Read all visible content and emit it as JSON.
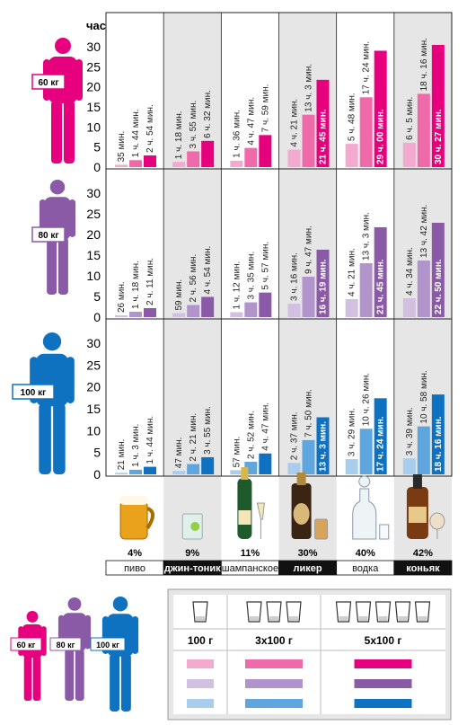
{
  "colors": {
    "p60": [
      "#f4a9cf",
      "#ee6aa9",
      "#e6007e"
    ],
    "p80": [
      "#d2c0e2",
      "#b294cc",
      "#8b5aa6"
    ],
    "p100": [
      "#a9cdec",
      "#5ea6dd",
      "#0f72c0"
    ],
    "shade": "#e6e6e6",
    "grid": "#222222"
  },
  "chart_data": {
    "type": "bar",
    "ylabel": "час",
    "ylim": [
      0,
      30
    ],
    "yticks": [
      0,
      5,
      10,
      15,
      20,
      25,
      30
    ],
    "categories": [
      {
        "name": "пиво",
        "percent": "4%",
        "label_style": "plain"
      },
      {
        "name": "джин-тоник",
        "percent": "9%",
        "label_style": "inverted"
      },
      {
        "name": "шампанское",
        "percent": "11%",
        "label_style": "plain"
      },
      {
        "name": "ликер",
        "percent": "30%",
        "label_style": "inverted"
      },
      {
        "name": "водка",
        "percent": "40%",
        "label_style": "plain"
      },
      {
        "name": "коньяк",
        "percent": "42%",
        "label_style": "inverted"
      }
    ],
    "series": [
      "100 г",
      "3x100 г",
      "5x100 г"
    ],
    "panels": [
      {
        "weight": "60 кг",
        "palette": "p60",
        "values": [
          [
            0.58,
            1.73,
            2.9
          ],
          [
            1.3,
            3.92,
            6.53
          ],
          [
            1.6,
            4.78,
            7.98
          ],
          [
            4.35,
            13.05,
            21.75
          ],
          [
            5.8,
            17.4,
            29.0
          ],
          [
            6.08,
            18.27,
            30.45
          ]
        ],
        "labels": [
          [
            "35 мин.",
            "1 ч. 44 мин.",
            "2 ч. 54 мин."
          ],
          [
            "1 ч. 18 мин.",
            "3 ч. 55 мин.",
            "6 ч. 32 мин."
          ],
          [
            "1 ч. 36 мин.",
            "4 ч. 47 мин.",
            "7 ч. 59 мин."
          ],
          [
            "4 ч. 21 мин.",
            "13 ч. 3 мин.",
            "21 ч. 45 мин."
          ],
          [
            "5 ч. 48 мин.",
            "17 ч. 24 мин.",
            "29 ч. 00 мин."
          ],
          [
            "6 ч. 5 мин.",
            "18 ч. 16 мин.",
            "30 ч. 27 мин."
          ]
        ]
      },
      {
        "weight": "80 кг",
        "palette": "p80",
        "values": [
          [
            0.43,
            1.3,
            2.18
          ],
          [
            0.98,
            2.93,
            4.9
          ],
          [
            1.2,
            3.58,
            5.95
          ],
          [
            3.27,
            9.78,
            16.32
          ],
          [
            4.35,
            13.05,
            21.75
          ],
          [
            4.57,
            13.7,
            22.83
          ]
        ],
        "labels": [
          [
            "26 мин.",
            "1 ч. 18 мин.",
            "2 ч. 11 мин."
          ],
          [
            "59 мин.",
            "2 ч. 56 мин.",
            "4 ч. 54 мин."
          ],
          [
            "1 ч. 12 мин.",
            "3 ч. 35 мин.",
            "5 ч. 57 мин."
          ],
          [
            "3 ч. 16 мин.",
            "9 ч. 47 мин.",
            "16 ч. 19 мин."
          ],
          [
            "4 ч. 21 мин.",
            "13 ч. 3 мин.",
            "21 ч. 45 мин."
          ],
          [
            "4 ч. 34 мин.",
            "13 ч. 42 мин.",
            "22 ч. 50 мин."
          ]
        ]
      },
      {
        "weight": "100 кг",
        "palette": "p100",
        "values": [
          [
            0.35,
            1.05,
            1.73
          ],
          [
            0.78,
            2.35,
            3.92
          ],
          [
            0.95,
            2.87,
            4.78
          ],
          [
            2.62,
            7.83,
            13.05
          ],
          [
            3.48,
            10.43,
            17.4
          ],
          [
            3.65,
            10.97,
            18.27
          ]
        ],
        "labels": [
          [
            "21 мин.",
            "1 ч. 3 мин.",
            "1 ч. 44 мин."
          ],
          [
            "47 мин.",
            "2 ч. 21 мин.",
            "3 ч. 55 мин."
          ],
          [
            "57 мин.",
            "2 ч. 52 мин.",
            "4 ч. 47 мин."
          ],
          [
            "2 ч. 37 мин.",
            "7 ч. 50 мин.",
            "13 ч. 3 мин."
          ],
          [
            "3 ч. 29 мин.",
            "10 ч. 26 мин.",
            "17 ч. 24 мин."
          ],
          [
            "3 ч. 39 мин.",
            "10 ч. 58 мин.",
            "18 ч. 16 мин."
          ]
        ]
      }
    ]
  },
  "legend": {
    "weights": [
      "60 кг",
      "80 кг",
      "100 кг"
    ],
    "columns": [
      {
        "label": "100 г",
        "glasses": 1
      },
      {
        "label": "3x100 г",
        "glasses": 3
      },
      {
        "label": "5x100 г",
        "glasses": 5
      }
    ]
  }
}
